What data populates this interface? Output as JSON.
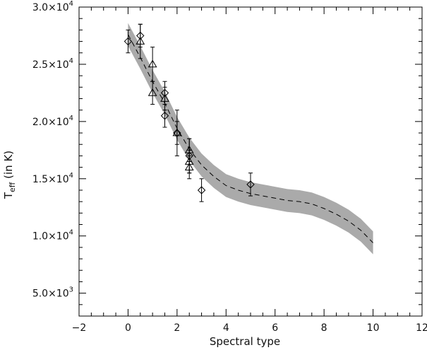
{
  "chart_data": {
    "type": "scatter",
    "title": "",
    "xlabel": "Spectral type",
    "ylabel": {
      "main": "T",
      "sub": "eff",
      "rest": " (in K)"
    },
    "xlim": [
      -2,
      12
    ],
    "ylim": [
      3000,
      30000
    ],
    "x_ticks": [
      -2,
      0,
      2,
      4,
      6,
      8,
      10,
      12
    ],
    "x_tick_labels": [
      "−2",
      "0",
      "2",
      "4",
      "6",
      "8",
      "10",
      "12"
    ],
    "y_ticks": [
      {
        "value": 5000,
        "mantissa": "5.0×10",
        "exp": "3"
      },
      {
        "value": 10000,
        "mantissa": "1.0×10",
        "exp": "4"
      },
      {
        "value": 15000,
        "mantissa": "1.5×10",
        "exp": "4"
      },
      {
        "value": 20000,
        "mantissa": "2.0×10",
        "exp": "4"
      },
      {
        "value": 25000,
        "mantissa": "2.5×10",
        "exp": "4"
      },
      {
        "value": 30000,
        "mantissa": "3.0×10",
        "exp": "4"
      }
    ],
    "grid": false,
    "series": [
      {
        "marker": "diamond",
        "points": [
          {
            "x": 0.0,
            "y": 27000,
            "err": 1000
          },
          {
            "x": 0.5,
            "y": 27500,
            "err": 1000
          },
          {
            "x": 1.5,
            "y": 22500,
            "err": 1000
          },
          {
            "x": 1.5,
            "y": 20500,
            "err": 1000
          },
          {
            "x": 2.0,
            "y": 19000,
            "err": 2000
          },
          {
            "x": 2.5,
            "y": 17000,
            "err": 1500
          },
          {
            "x": 3.0,
            "y": 14000,
            "err": 1000
          },
          {
            "x": 5.0,
            "y": 14500,
            "err": 1000
          }
        ]
      },
      {
        "marker": "triangle",
        "points": [
          {
            "x": 0.5,
            "y": 27000,
            "err": 1500
          },
          {
            "x": 1.0,
            "y": 25000,
            "err": 1500
          },
          {
            "x": 1.0,
            "y": 22500,
            "err": 1000
          },
          {
            "x": 1.5,
            "y": 22000,
            "err": 1000
          },
          {
            "x": 2.0,
            "y": 19000,
            "err": 1000
          },
          {
            "x": 2.5,
            "y": 17500,
            "err": 1000
          },
          {
            "x": 2.5,
            "y": 16500,
            "err": 1000
          },
          {
            "x": 2.5,
            "y": 16000,
            "err": 1000
          }
        ]
      }
    ],
    "fit": {
      "style": "dashed",
      "band_halfwidth": 1000,
      "curve": [
        {
          "x": 0.0,
          "y": 27600
        },
        {
          "x": 0.5,
          "y": 25600
        },
        {
          "x": 1.0,
          "y": 23500
        },
        {
          "x": 1.5,
          "y": 21600
        },
        {
          "x": 2.0,
          "y": 19400
        },
        {
          "x": 2.5,
          "y": 17600
        },
        {
          "x": 3.0,
          "y": 16200
        },
        {
          "x": 3.5,
          "y": 15200
        },
        {
          "x": 4.0,
          "y": 14400
        },
        {
          "x": 4.5,
          "y": 14000
        },
        {
          "x": 5.0,
          "y": 13700
        },
        {
          "x": 5.5,
          "y": 13500
        },
        {
          "x": 6.0,
          "y": 13300
        },
        {
          "x": 6.5,
          "y": 13100
        },
        {
          "x": 7.0,
          "y": 13000
        },
        {
          "x": 7.5,
          "y": 12800
        },
        {
          "x": 8.0,
          "y": 12400
        },
        {
          "x": 8.5,
          "y": 11900
        },
        {
          "x": 9.0,
          "y": 11300
        },
        {
          "x": 9.5,
          "y": 10500
        },
        {
          "x": 10.0,
          "y": 9400
        }
      ]
    },
    "colors": {
      "band": "#aaaaaa",
      "line": "#000000",
      "axis": "#000000"
    }
  }
}
